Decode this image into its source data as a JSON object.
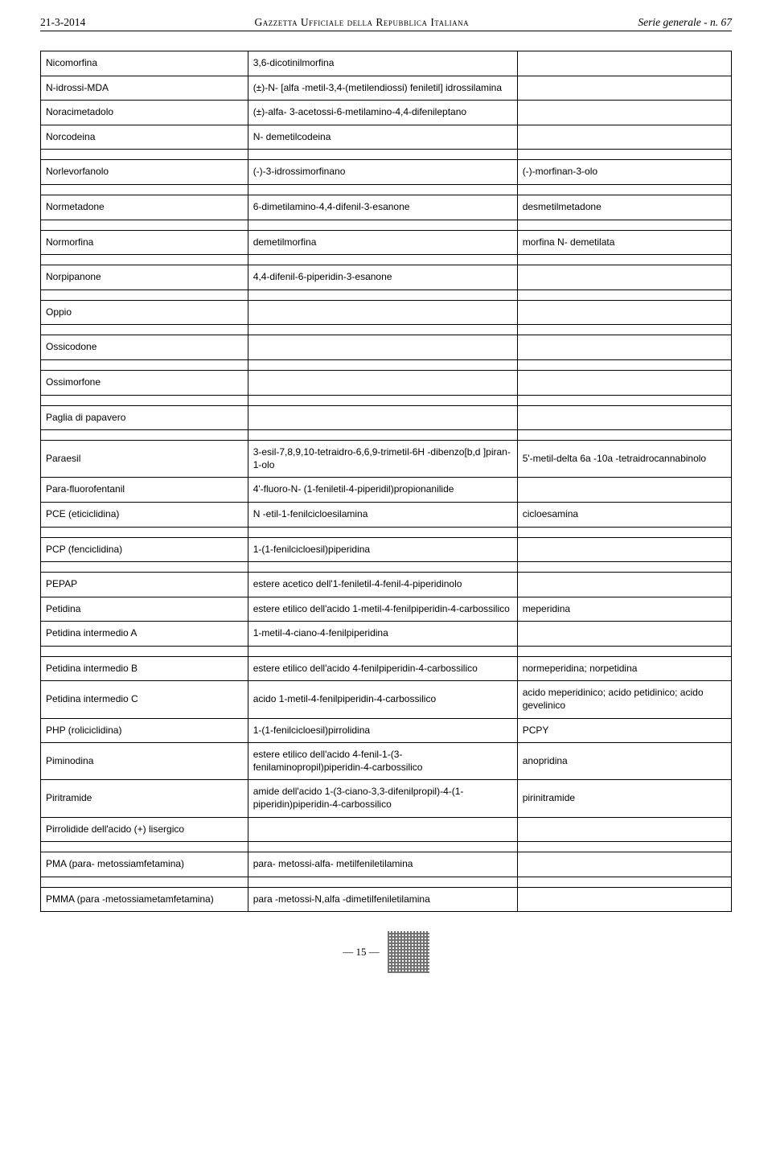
{
  "header": {
    "left": "21-3-2014",
    "center_a": "Gazzetta Ufficiale della Repubblica Italiana",
    "right": "Serie generale - n. 67"
  },
  "rows": [
    {
      "c1": "Nicomorfina",
      "c2": "3,6-dicotinilmorfina",
      "c3": ""
    },
    {
      "c1": "N-idrossi-MDA",
      "c2": "(±)-N- [alfa -metil-3,4-(metilendiossi) feniletil] idrossilamina",
      "c3": ""
    },
    {
      "c1": "Noracimetadolo",
      "c2": "(±)-alfa- 3-acetossi-6-metilamino-4,4-difenileptano",
      "c3": ""
    },
    {
      "c1": "Norcodeina",
      "c2": "N- demetilcodeina",
      "c3": ""
    },
    {
      "spacer": true
    },
    {
      "c1": "Norlevorfanolo",
      "c2": "(-)-3-idrossimorfinano",
      "c3": "(-)-morfinan-3-olo"
    },
    {
      "spacer": true
    },
    {
      "c1": "Normetadone",
      "c2": "6-dimetilamino-4,4-difenil-3-esanone",
      "c3": "desmetilmetadone"
    },
    {
      "spacer": true
    },
    {
      "c1": "Normorfina",
      "c2": "demetilmorfina",
      "c3": "morfina N- demetilata"
    },
    {
      "spacer": true
    },
    {
      "c1": "Norpipanone",
      "c2": "4,4-difenil-6-piperidin-3-esanone",
      "c3": ""
    },
    {
      "spacer": true
    },
    {
      "c1": "Oppio",
      "c2": "",
      "c3": ""
    },
    {
      "spacer": true
    },
    {
      "c1": "Ossicodone",
      "c2": "",
      "c3": ""
    },
    {
      "spacer": true
    },
    {
      "c1": "Ossimorfone",
      "c2": "",
      "c3": ""
    },
    {
      "spacer": true
    },
    {
      "c1": "Paglia di papavero",
      "c2": "",
      "c3": ""
    },
    {
      "spacer": true
    },
    {
      "c1": "Paraesil",
      "c2": "3-esil-7,8,9,10-tetraidro-6,6,9-trimetil-6H -dibenzo[b,d ]piran-1-olo",
      "c3": "5'-metil-delta 6a -10a -tetraidrocannabinolo"
    },
    {
      "c1": "Para-fluorofentanil",
      "c2": "4'-fluoro-N- (1-feniletil-4-piperidil)propionanilide",
      "c3": ""
    },
    {
      "c1": "PCE (eticiclidina)",
      "c2": "N -etil-1-fenilcicloesilamina",
      "c3": "cicloesamina"
    },
    {
      "spacer": true
    },
    {
      "c1": "PCP (fenciclidina)",
      "c2": "1-(1-fenilcicloesil)piperidina",
      "c3": ""
    },
    {
      "spacer": true
    },
    {
      "c1": "PEPAP",
      "c2": "estere acetico dell'1-feniletil-4-fenil-4-piperidinolo",
      "c3": ""
    },
    {
      "c1": "Petidina",
      "c2": "estere etilico dell'acido 1-metil-4-fenilpiperidin-4-carbossilico",
      "c3": "meperidina"
    },
    {
      "c1": "Petidina intermedio A",
      "c2": "1-metil-4-ciano-4-fenilpiperidina",
      "c3": ""
    },
    {
      "spacer": true
    },
    {
      "c1": "Petidina intermedio B",
      "c2": "estere etilico dell'acido 4-fenilpiperidin-4-carbossilico",
      "c3": "normeperidina; norpetidina"
    },
    {
      "c1": "Petidina intermedio C",
      "c2": "acido 1-metil-4-fenilpiperidin-4-carbossilico",
      "c3": "acido meperidinico; acido petidinico; acido gevelinico"
    },
    {
      "c1": "PHP (roliciclidina)",
      "c2": "1-(1-fenilcicloesil)pirrolidina",
      "c3": "PCPY"
    },
    {
      "c1": "Piminodina",
      "c2": "estere etilico dell'acido 4-fenil-1-(3-fenilaminopropil)piperidin-4-carbossilico",
      "c3": "anopridina"
    },
    {
      "c1": "Piritramide",
      "c2": "amide dell'acido 1-(3-ciano-3,3-difenilpropil)-4-(1-piperidin)piperidin-4-carbossilico",
      "c3": "pirinitramide"
    },
    {
      "c1": "Pirrolidide dell'acido (+) lisergico",
      "c2": "",
      "c3": ""
    },
    {
      "spacer": true
    },
    {
      "c1": "PMA (para- metossiamfetamina)",
      "c2": "para- metossi-alfa- metilfeniletilamina",
      "c3": ""
    },
    {
      "spacer": true
    },
    {
      "c1": "PMMA (para -metossiametamfetamina)",
      "c2": "para -metossi-N,alfa -dimetilfeniletilamina",
      "c3": ""
    }
  ],
  "footer": {
    "page": "— 15 —"
  }
}
